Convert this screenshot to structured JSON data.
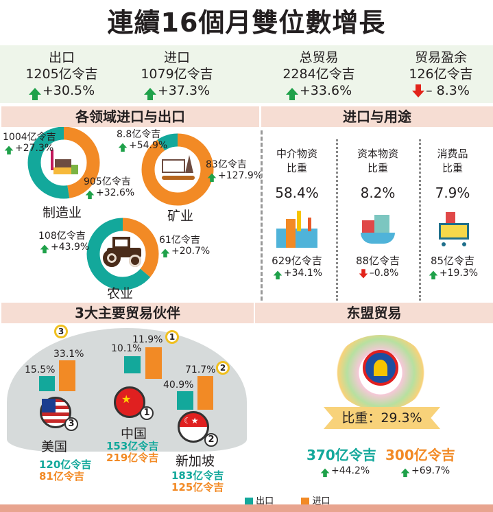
{
  "title": "連續16個月雙位數增長",
  "stats": [
    {
      "label": "出口",
      "value": "1205亿令吉",
      "change": "+30.5%",
      "dir": "up"
    },
    {
      "label": "进口",
      "value": "1079亿令吉",
      "change": "+37.3%",
      "dir": "up"
    },
    {
      "label": "总贸易",
      "value": "2284亿令吉",
      "change": "+33.6%",
      "dir": "up"
    },
    {
      "label": "贸易盈余",
      "value": "126亿令吉",
      "change": "– 8.3%",
      "dir": "down"
    }
  ],
  "sectors": {
    "heading": "各领域进口与出口",
    "items": [
      {
        "name": "制造业",
        "export": "1004亿令吉",
        "export_change": "+27.3%",
        "import": "905亿令吉",
        "import_change": "+32.6%",
        "export_value": 1004,
        "import_value": 905
      },
      {
        "name": "矿业",
        "export": "8.8亿令吉",
        "export_change": "+54.9%",
        "import": "83亿令吉",
        "import_change": "+127.9%",
        "export_value": 8.8,
        "import_value": 83
      },
      {
        "name": "农业",
        "export": "108亿令吉",
        "export_change": "+43.9%",
        "import": "61亿令吉",
        "import_change": "+20.7%",
        "export_value": 108,
        "import_value": 61
      }
    ]
  },
  "imports_use": {
    "heading": "进口与用途",
    "items": [
      {
        "label1": "中介物资",
        "label2": "比重",
        "share": "58.4%",
        "value": "629亿令吉",
        "change": "+34.1%",
        "dir": "up"
      },
      {
        "label1": "资本物资",
        "label2": "比重",
        "share": "8.2%",
        "value": "88亿令吉",
        "change": "–0.8%",
        "dir": "down"
      },
      {
        "label1": "消费品",
        "label2": "比重",
        "share": "7.9%",
        "value": "85亿令吉",
        "change": "+19.3%",
        "dir": "up"
      }
    ]
  },
  "partners": {
    "heading": "3大主要贸易伙伴",
    "items": [
      {
        "name": "美国",
        "rank": "3",
        "export_pct": "15.5%",
        "import_pct": "33.1%",
        "export": "120亿令吉",
        "import": "81亿令吉"
      },
      {
        "name": "中国",
        "rank": "1",
        "export_pct": "10.1%",
        "import_pct": "11.9%",
        "export": "153亿令吉",
        "import": "219亿令吉"
      },
      {
        "name": "新加坡",
        "rank": "2",
        "export_pct": "40.9%",
        "import_pct": "71.7%",
        "export": "183亿令吉",
        "import": "125亿令吉"
      }
    ]
  },
  "asean": {
    "heading": "东盟贸易",
    "share": "比重：29.3%",
    "export": "370亿令吉",
    "export_change": "+44.2%",
    "import": "300亿令吉",
    "import_change": "+69.7%"
  },
  "legend": {
    "export": "出口",
    "import": "进口"
  },
  "colors": {
    "export": "#13a89b",
    "import": "#f28a25"
  }
}
